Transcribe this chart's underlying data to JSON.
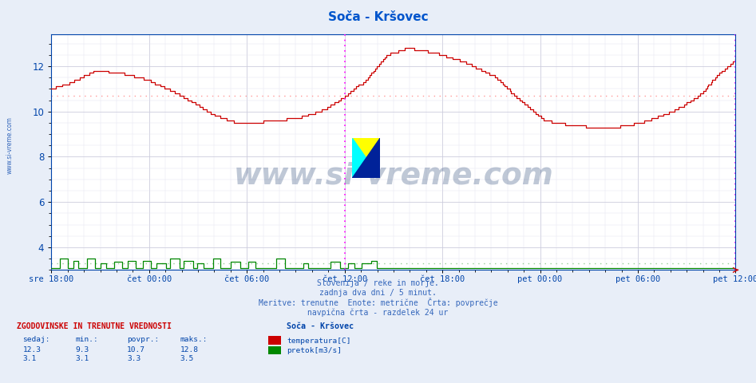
{
  "title": "Soča - Kršovec",
  "title_color": "#0055cc",
  "bg_color": "#e8eef8",
  "plot_bg_color": "#ffffff",
  "grid_color_major": "#ccccdd",
  "grid_color_minor": "#e0e0ee",
  "ylim": [
    3.0,
    13.4
  ],
  "yticks": [
    4,
    6,
    8,
    10,
    12
  ],
  "tick_color": "#0044aa",
  "temp_color": "#cc0000",
  "flow_color": "#008800",
  "avg_temp": 10.7,
  "avg_flow": 3.3,
  "avg_temp_color": "#ff9999",
  "avg_flow_color": "#99cc99",
  "vline_color": "#ff00ff",
  "n_points": 504,
  "xtick_labels": [
    "sre 18:00",
    "čet 00:00",
    "čet 06:00",
    "čet 12:00",
    "čet 18:00",
    "pet 00:00",
    "pet 06:00",
    "pet 12:00"
  ],
  "footer_color": "#3366bb",
  "legend_title": "Soča - Kršovec",
  "legend_temp_label": "temperatura[C]",
  "legend_flow_label": "pretok[m3/s]",
  "stats_header": "ZGODOVINSKE IN TRENUTNE VREDNOSTI",
  "stats_col_headers": [
    "sedaj:",
    "min.:",
    "povpr.:",
    "maks.:"
  ],
  "stats_temp": [
    12.3,
    9.3,
    10.7,
    12.8
  ],
  "stats_flow": [
    3.1,
    3.1,
    3.3,
    3.5
  ],
  "watermark_text": "www.si-vreme.com",
  "watermark_color": "#1a3a6e",
  "watermark_alpha": 0.28,
  "footer_lines": [
    "Slovenija / reke in morje.",
    "zadnja dva dni / 5 minut.",
    "Meritve: trenutne  Enote: metrične  Črta: povprečje",
    "navpična črta - razdelek 24 ur"
  ]
}
